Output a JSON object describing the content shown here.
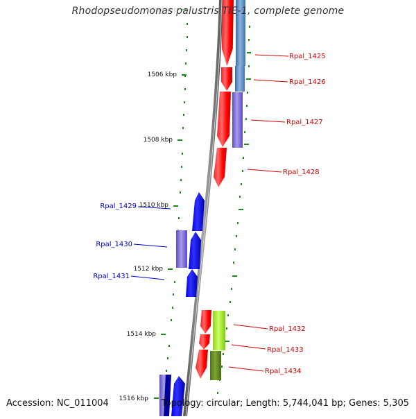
{
  "title": "Rhodopseudomonas palustris TIE-1, complete genome",
  "footer": {
    "accession_label": "Accession:",
    "accession": "NC_011004",
    "topology_label": "Topology:",
    "topology": "circular",
    "length_label": "Length:",
    "length": "5,744,041 bp",
    "genes_label": "Genes:",
    "genes": "5,305"
  },
  "ruler": {
    "unit": "kbp",
    "ticks": [
      {
        "label": "1504 kbp",
        "faded": true
      },
      {
        "label": "1506 kbp"
      },
      {
        "label": "1508 kbp"
      },
      {
        "label": "1510 kbp"
      },
      {
        "label": "1512 kbp"
      },
      {
        "label": "1514 kbp"
      },
      {
        "label": "1516 kbp"
      }
    ]
  },
  "genes": [
    {
      "name": "Rpal_1425",
      "strand": "forward",
      "color": "#cc0000"
    },
    {
      "name": "Rpal_1426",
      "strand": "forward",
      "color": "#cc0000"
    },
    {
      "name": "Rpal_1427",
      "strand": "forward",
      "color": "#cc0000"
    },
    {
      "name": "Rpal_1428",
      "strand": "forward",
      "color": "#cc0000"
    },
    {
      "name": "Rpal_1429",
      "strand": "reverse",
      "color": "#0000cc"
    },
    {
      "name": "Rpal_1430",
      "strand": "reverse",
      "color": "#0000cc"
    },
    {
      "name": "Rpal_1431",
      "strand": "reverse",
      "color": "#0000cc"
    },
    {
      "name": "Rpal_1432",
      "strand": "forward",
      "color": "#cc0000"
    },
    {
      "name": "Rpal_1433",
      "strand": "forward",
      "color": "#cc0000"
    },
    {
      "name": "Rpal_1434",
      "strand": "forward",
      "color": "#cc0000"
    }
  ]
}
